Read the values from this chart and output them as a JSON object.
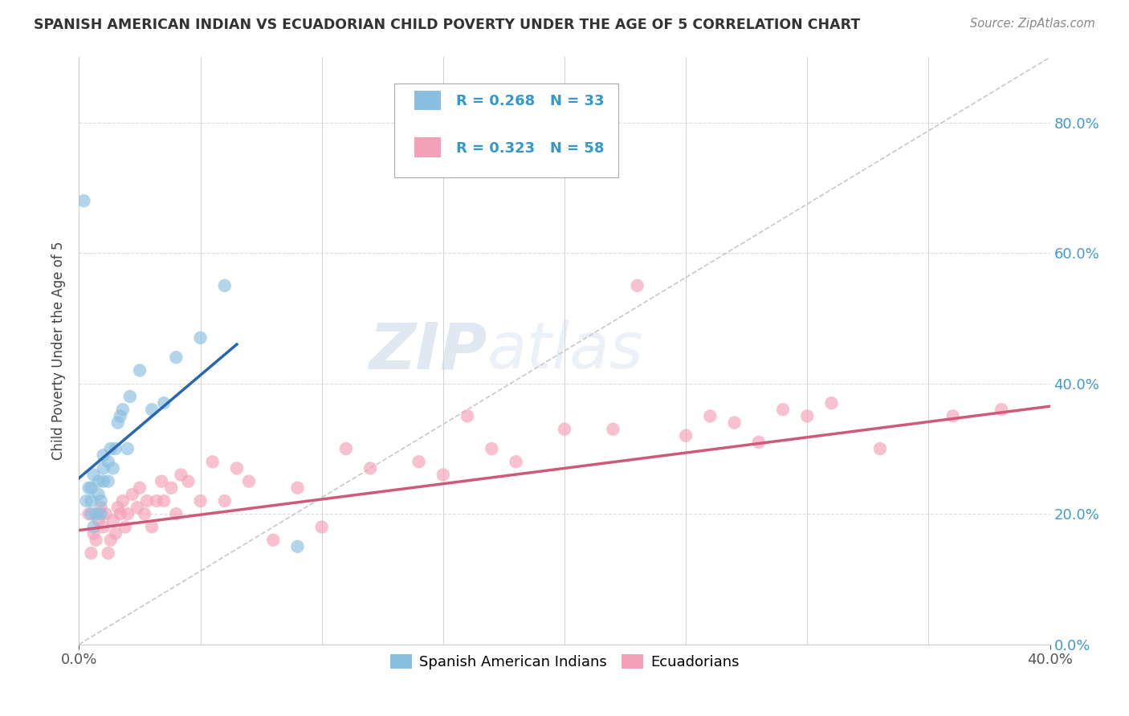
{
  "title": "SPANISH AMERICAN INDIAN VS ECUADORIAN CHILD POVERTY UNDER THE AGE OF 5 CORRELATION CHART",
  "source": "Source: ZipAtlas.com",
  "ylabel": "Child Poverty Under the Age of 5",
  "legend_label1": "Spanish American Indians",
  "legend_label2": "Ecuadorians",
  "r1": 0.268,
  "n1": 33,
  "r2": 0.323,
  "n2": 58,
  "blue_color": "#89bfe0",
  "pink_color": "#f4a0b8",
  "blue_line_color": "#2866b0",
  "pink_line_color": "#d05878",
  "ref_line_color": "#bbbbbb",
  "background_color": "#ffffff",
  "grid_color": "#dddddd",
  "watermark_zip": "ZIP",
  "watermark_atlas": "atlas",
  "title_color": "#333333",
  "source_color": "#888888",
  "legend_text_color": "#3399cc",
  "xlim": [
    0.0,
    0.4
  ],
  "ylim": [
    0.0,
    0.9
  ],
  "xticks": [
    0.0,
    0.4
  ],
  "yticks": [
    0.0,
    0.2,
    0.4,
    0.6,
    0.8
  ],
  "blue_scatter_x": [
    0.002,
    0.003,
    0.004,
    0.005,
    0.005,
    0.005,
    0.006,
    0.006,
    0.007,
    0.008,
    0.008,
    0.009,
    0.009,
    0.01,
    0.01,
    0.01,
    0.012,
    0.012,
    0.013,
    0.014,
    0.015,
    0.016,
    0.017,
    0.018,
    0.02,
    0.021,
    0.025,
    0.03,
    0.035,
    0.04,
    0.05,
    0.06,
    0.09
  ],
  "blue_scatter_y": [
    0.68,
    0.22,
    0.24,
    0.2,
    0.22,
    0.24,
    0.18,
    0.26,
    0.2,
    0.23,
    0.25,
    0.2,
    0.22,
    0.25,
    0.27,
    0.29,
    0.25,
    0.28,
    0.3,
    0.27,
    0.3,
    0.34,
    0.35,
    0.36,
    0.3,
    0.38,
    0.42,
    0.36,
    0.37,
    0.44,
    0.47,
    0.55,
    0.15
  ],
  "pink_scatter_x": [
    0.004,
    0.005,
    0.006,
    0.007,
    0.008,
    0.009,
    0.01,
    0.011,
    0.012,
    0.013,
    0.014,
    0.015,
    0.016,
    0.017,
    0.018,
    0.019,
    0.02,
    0.022,
    0.024,
    0.025,
    0.027,
    0.028,
    0.03,
    0.032,
    0.034,
    0.035,
    0.038,
    0.04,
    0.042,
    0.045,
    0.05,
    0.055,
    0.06,
    0.065,
    0.07,
    0.08,
    0.09,
    0.1,
    0.11,
    0.12,
    0.14,
    0.15,
    0.16,
    0.17,
    0.18,
    0.2,
    0.22,
    0.23,
    0.25,
    0.26,
    0.27,
    0.28,
    0.29,
    0.3,
    0.31,
    0.33,
    0.36,
    0.38
  ],
  "pink_scatter_y": [
    0.2,
    0.14,
    0.17,
    0.16,
    0.19,
    0.21,
    0.18,
    0.2,
    0.14,
    0.16,
    0.19,
    0.17,
    0.21,
    0.2,
    0.22,
    0.18,
    0.2,
    0.23,
    0.21,
    0.24,
    0.2,
    0.22,
    0.18,
    0.22,
    0.25,
    0.22,
    0.24,
    0.2,
    0.26,
    0.25,
    0.22,
    0.28,
    0.22,
    0.27,
    0.25,
    0.16,
    0.24,
    0.18,
    0.3,
    0.27,
    0.28,
    0.26,
    0.35,
    0.3,
    0.28,
    0.33,
    0.33,
    0.55,
    0.32,
    0.35,
    0.34,
    0.31,
    0.36,
    0.35,
    0.37,
    0.3,
    0.35,
    0.36
  ],
  "blue_line_x": [
    0.0,
    0.065
  ],
  "blue_line_y": [
    0.255,
    0.46
  ],
  "pink_line_x": [
    0.0,
    0.4
  ],
  "pink_line_y": [
    0.175,
    0.365
  ]
}
